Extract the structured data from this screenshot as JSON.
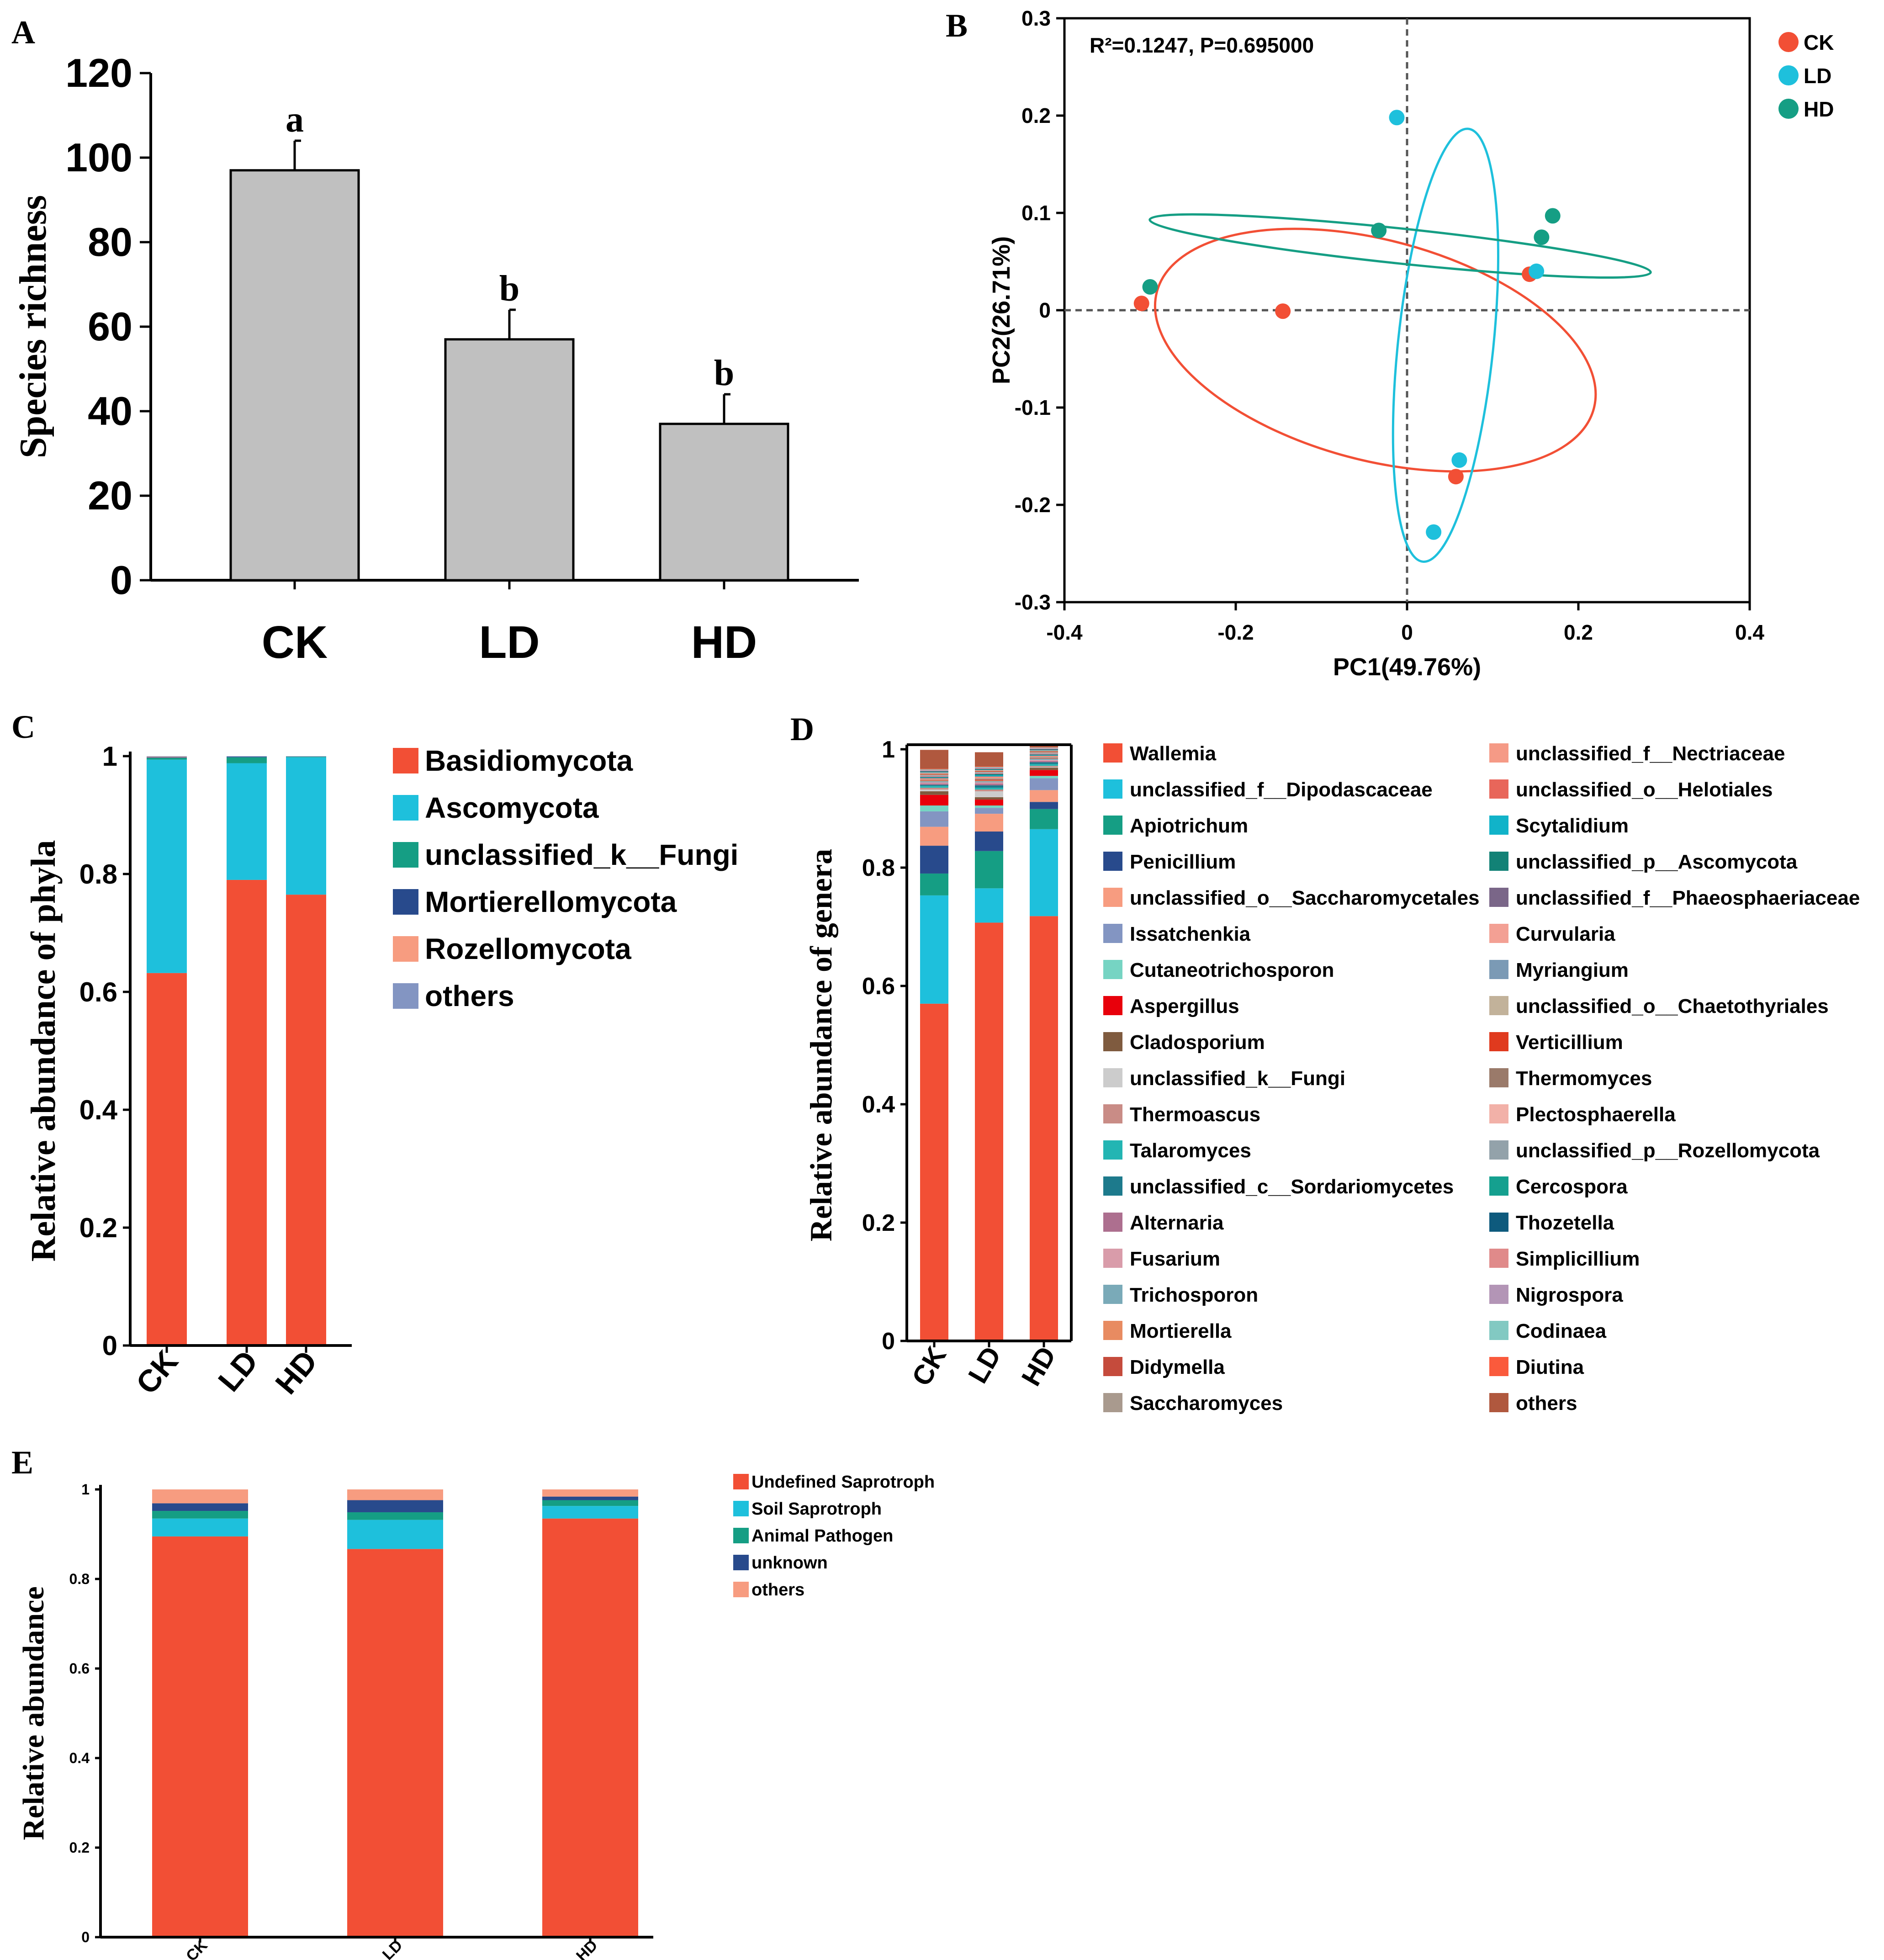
{
  "figure": {
    "panel_labels": [
      "A",
      "B",
      "C",
      "D",
      "E"
    ]
  },
  "chart_data": [
    {
      "panel": "A",
      "type": "bar",
      "categories": [
        "CK",
        "LD",
        "HD"
      ],
      "values": [
        97,
        57,
        37
      ],
      "errors": [
        7,
        7,
        7
      ],
      "letters": [
        "a",
        "b",
        "b"
      ],
      "ylabel": "Species richness",
      "ylim": [
        0,
        120
      ],
      "yticks": [
        "0",
        "20",
        "40",
        "60",
        "80",
        "100",
        "120"
      ],
      "color": "#c0c0c0"
    },
    {
      "panel": "B",
      "type": "scatter",
      "xlabel": "PC1(49.76%)",
      "ylabel": "PC2(26.71%)",
      "xlim": [
        -0.4,
        0.4
      ],
      "ylim": [
        -0.3,
        0.3
      ],
      "xticks": [
        "-0.4",
        "-0.2",
        "0",
        "0.2",
        "0.4"
      ],
      "yticks": [
        "0.3",
        "0.2",
        "0.1",
        "0",
        "-0.1",
        "-0.2",
        "-0.3"
      ],
      "annotation": "R²=0.1247, P=0.695000",
      "series": [
        {
          "name": "CK",
          "color": "#f24f35",
          "points": [
            [
              -0.31,
              0.007
            ],
            [
              -0.145,
              -0.001
            ],
            [
              0.143,
              0.037
            ],
            [
              0.057,
              -0.171
            ]
          ]
        },
        {
          "name": "LD",
          "color": "#1ec0dc",
          "points": [
            [
              -0.012,
              0.198
            ],
            [
              0.151,
              0.04
            ],
            [
              0.061,
              -0.154
            ],
            [
              0.031,
              -0.228
            ]
          ]
        },
        {
          "name": "HD",
          "color": "#159e84",
          "points": [
            [
              -0.3,
              0.024
            ],
            [
              -0.033,
              0.082
            ],
            [
              0.157,
              0.075
            ],
            [
              0.17,
              0.097
            ]
          ]
        }
      ]
    },
    {
      "panel": "C",
      "type": "bar",
      "stacked": true,
      "categories": [
        "CK",
        "LD",
        "HD"
      ],
      "ylabel": "Relative abundance of   phyla",
      "ylim": [
        0,
        1
      ],
      "yticks": [
        "0",
        "0.2",
        "0.4",
        "0.6",
        "0.8",
        "1"
      ],
      "series": [
        {
          "name": "Basidiomycota",
          "color": "#f24f35",
          "values": [
            0.632,
            0.79,
            0.765
          ]
        },
        {
          "name": "Ascomycota",
          "color": "#1ec0dc",
          "values": [
            0.362,
            0.198,
            0.233
          ]
        },
        {
          "name": "unclassified_k__Fungi",
          "color": "#159e84",
          "values": [
            0.003,
            0.01,
            0.001
          ]
        },
        {
          "name": "Mortierellomycota",
          "color": "#284a8c",
          "values": [
            0.001,
            0.001,
            0.0
          ]
        },
        {
          "name": "Rozellomycota",
          "color": "#f79c80",
          "values": [
            0.001,
            0.0,
            0.0
          ]
        },
        {
          "name": "others",
          "color": "#8395c2",
          "values": [
            0.001,
            0.001,
            0.001
          ]
        }
      ]
    },
    {
      "panel": "D",
      "type": "bar",
      "stacked": true,
      "categories": [
        "CK",
        "LD",
        "HD"
      ],
      "ylabel": "Relative abundance of   genera",
      "ylim": [
        0,
        1
      ],
      "yticks": [
        "0",
        "0.2",
        "0.4",
        "0.6",
        "0.8",
        "1"
      ],
      "series": [
        {
          "name": "Wallemia",
          "color": "#f24f35",
          "values": [
            0.57,
            0.707,
            0.718
          ]
        },
        {
          "name": "unclassified_f__Dipodascaceae",
          "color": "#1ec0dc",
          "values": [
            0.183,
            0.058,
            0.147
          ]
        },
        {
          "name": "Apiotrichum",
          "color": "#159e84",
          "values": [
            0.037,
            0.063,
            0.034
          ]
        },
        {
          "name": "Penicillium",
          "color": "#284a8c",
          "values": [
            0.047,
            0.033,
            0.012
          ]
        },
        {
          "name": "unclassified_o__Saccharomycetales",
          "color": "#f79c80",
          "values": [
            0.032,
            0.03,
            0.02
          ]
        },
        {
          "name": "Issatchenkia",
          "color": "#8395c2",
          "values": [
            0.026,
            0.01,
            0.02
          ]
        },
        {
          "name": "Cutaneotrichosporon",
          "color": "#76d4c3",
          "values": [
            0.01,
            0.004,
            0.004
          ]
        },
        {
          "name": "Aspergillus",
          "color": "#e8000b",
          "values": [
            0.018,
            0.01,
            0.01
          ]
        },
        {
          "name": "Cladosporium",
          "color": "#7f5b3f",
          "values": [
            0.006,
            0.004,
            0.004
          ]
        },
        {
          "name": "unclassified_k__Fungi",
          "color": "#cccccc",
          "values": [
            0.003,
            0.01,
            0.001
          ]
        },
        {
          "name": "Thermoascus",
          "color": "#c98c86",
          "values": [
            0.003,
            0.003,
            0.002
          ]
        },
        {
          "name": "Talaromyces",
          "color": "#23b5b3",
          "values": [
            0.003,
            0.003,
            0.003
          ]
        },
        {
          "name": "unclassified_c__Sordariomycetes",
          "color": "#1d7a8c",
          "values": [
            0.002,
            0.004,
            0.003
          ]
        },
        {
          "name": "Alternaria",
          "color": "#ad6f8f",
          "values": [
            0.002,
            0.003,
            0.002
          ]
        },
        {
          "name": "Fusarium",
          "color": "#d99caa",
          "values": [
            0.002,
            0.002,
            0.002
          ]
        },
        {
          "name": "Trichosporon",
          "color": "#7aaab8",
          "values": [
            0.002,
            0.002,
            0.002
          ]
        },
        {
          "name": "Mortierella",
          "color": "#e88b61",
          "values": [
            0.001,
            0.001,
            0.0
          ]
        },
        {
          "name": "Didymella",
          "color": "#c54b3c",
          "values": [
            0.001,
            0.002,
            0.001
          ]
        },
        {
          "name": "Saccharomyces",
          "color": "#a99a8e",
          "values": [
            0.001,
            0.002,
            0.002
          ]
        },
        {
          "name": "unclassified_f__Nectriaceae",
          "color": "#f59a86",
          "values": [
            0.001,
            0.002,
            0.001
          ]
        },
        {
          "name": "unclassified_o__Helotiales",
          "color": "#e8665a",
          "values": [
            0.001,
            0.001,
            0.001
          ]
        },
        {
          "name": "Scytalidium",
          "color": "#11b3c9",
          "values": [
            0.001,
            0.002,
            0.001
          ]
        },
        {
          "name": "unclassified_p__Ascomycota",
          "color": "#128276",
          "values": [
            0.001,
            0.002,
            0.001
          ]
        },
        {
          "name": "unclassified_f__Phaeosphaeriaceae",
          "color": "#7a6688",
          "values": [
            0.001,
            0.001,
            0.001
          ]
        },
        {
          "name": "Curvularia",
          "color": "#f3a094",
          "values": [
            0.001,
            0.001,
            0.001
          ]
        },
        {
          "name": "Myriangium",
          "color": "#7b9ab5",
          "values": [
            0.001,
            0.001,
            0.001
          ]
        },
        {
          "name": "unclassified_o__Chaetothyriales",
          "color": "#c2b29a",
          "values": [
            0.001,
            0.001,
            0.001
          ]
        },
        {
          "name": "Verticillium",
          "color": "#e03a1e",
          "values": [
            0.001,
            0.001,
            0.001
          ]
        },
        {
          "name": "Thermomyces",
          "color": "#9a7a6a",
          "values": [
            0.001,
            0.001,
            0.001
          ]
        },
        {
          "name": "Plectosphaerella",
          "color": "#f2b1a8",
          "values": [
            0.001,
            0.001,
            0.001
          ]
        },
        {
          "name": "unclassified_p__Rozellomycota",
          "color": "#93a2aa",
          "values": [
            0.001,
            0.0,
            0.0
          ]
        },
        {
          "name": "Cercospora",
          "color": "#15a08f",
          "values": [
            0.001,
            0.001,
            0.001
          ]
        },
        {
          "name": "Thozetella",
          "color": "#0e5a7d",
          "values": [
            0.001,
            0.001,
            0.001
          ]
        },
        {
          "name": "Simplicillium",
          "color": "#e08a8a",
          "values": [
            0.001,
            0.001,
            0.001
          ]
        },
        {
          "name": "Nigrospora",
          "color": "#b395b6",
          "values": [
            0.001,
            0.001,
            0.001
          ]
        },
        {
          "name": "Codinaea",
          "color": "#82c9c2",
          "values": [
            0.001,
            0.001,
            0.001
          ]
        },
        {
          "name": "Diutina",
          "color": "#fa5a3c",
          "values": [
            0.001,
            0.001,
            0.001
          ]
        },
        {
          "name": "others",
          "color": "#b0583e",
          "values": [
            0.032,
            0.024,
            0.004
          ]
        }
      ]
    },
    {
      "panel": "E",
      "type": "bar",
      "stacked": true,
      "categories": [
        "CK",
        "LD",
        "HD"
      ],
      "ylabel": "Relative abundance",
      "ylim": [
        0,
        1
      ],
      "yticks": [
        "0",
        "0.2",
        "0.4",
        "0.6",
        "0.8",
        "1"
      ],
      "series": [
        {
          "name": "Undefined Saprotroph",
          "color": "#f24f35",
          "values": [
            0.895,
            0.867,
            0.935
          ]
        },
        {
          "name": "Soil Saprotroph",
          "color": "#1ec0dc",
          "values": [
            0.04,
            0.065,
            0.028
          ]
        },
        {
          "name": "Animal Pathogen",
          "color": "#159e84",
          "values": [
            0.017,
            0.017,
            0.013
          ]
        },
        {
          "name": "unknown",
          "color": "#284a8c",
          "values": [
            0.017,
            0.027,
            0.008
          ]
        },
        {
          "name": "others",
          "color": "#f79c80",
          "values": [
            0.031,
            0.024,
            0.016
          ]
        }
      ]
    }
  ]
}
